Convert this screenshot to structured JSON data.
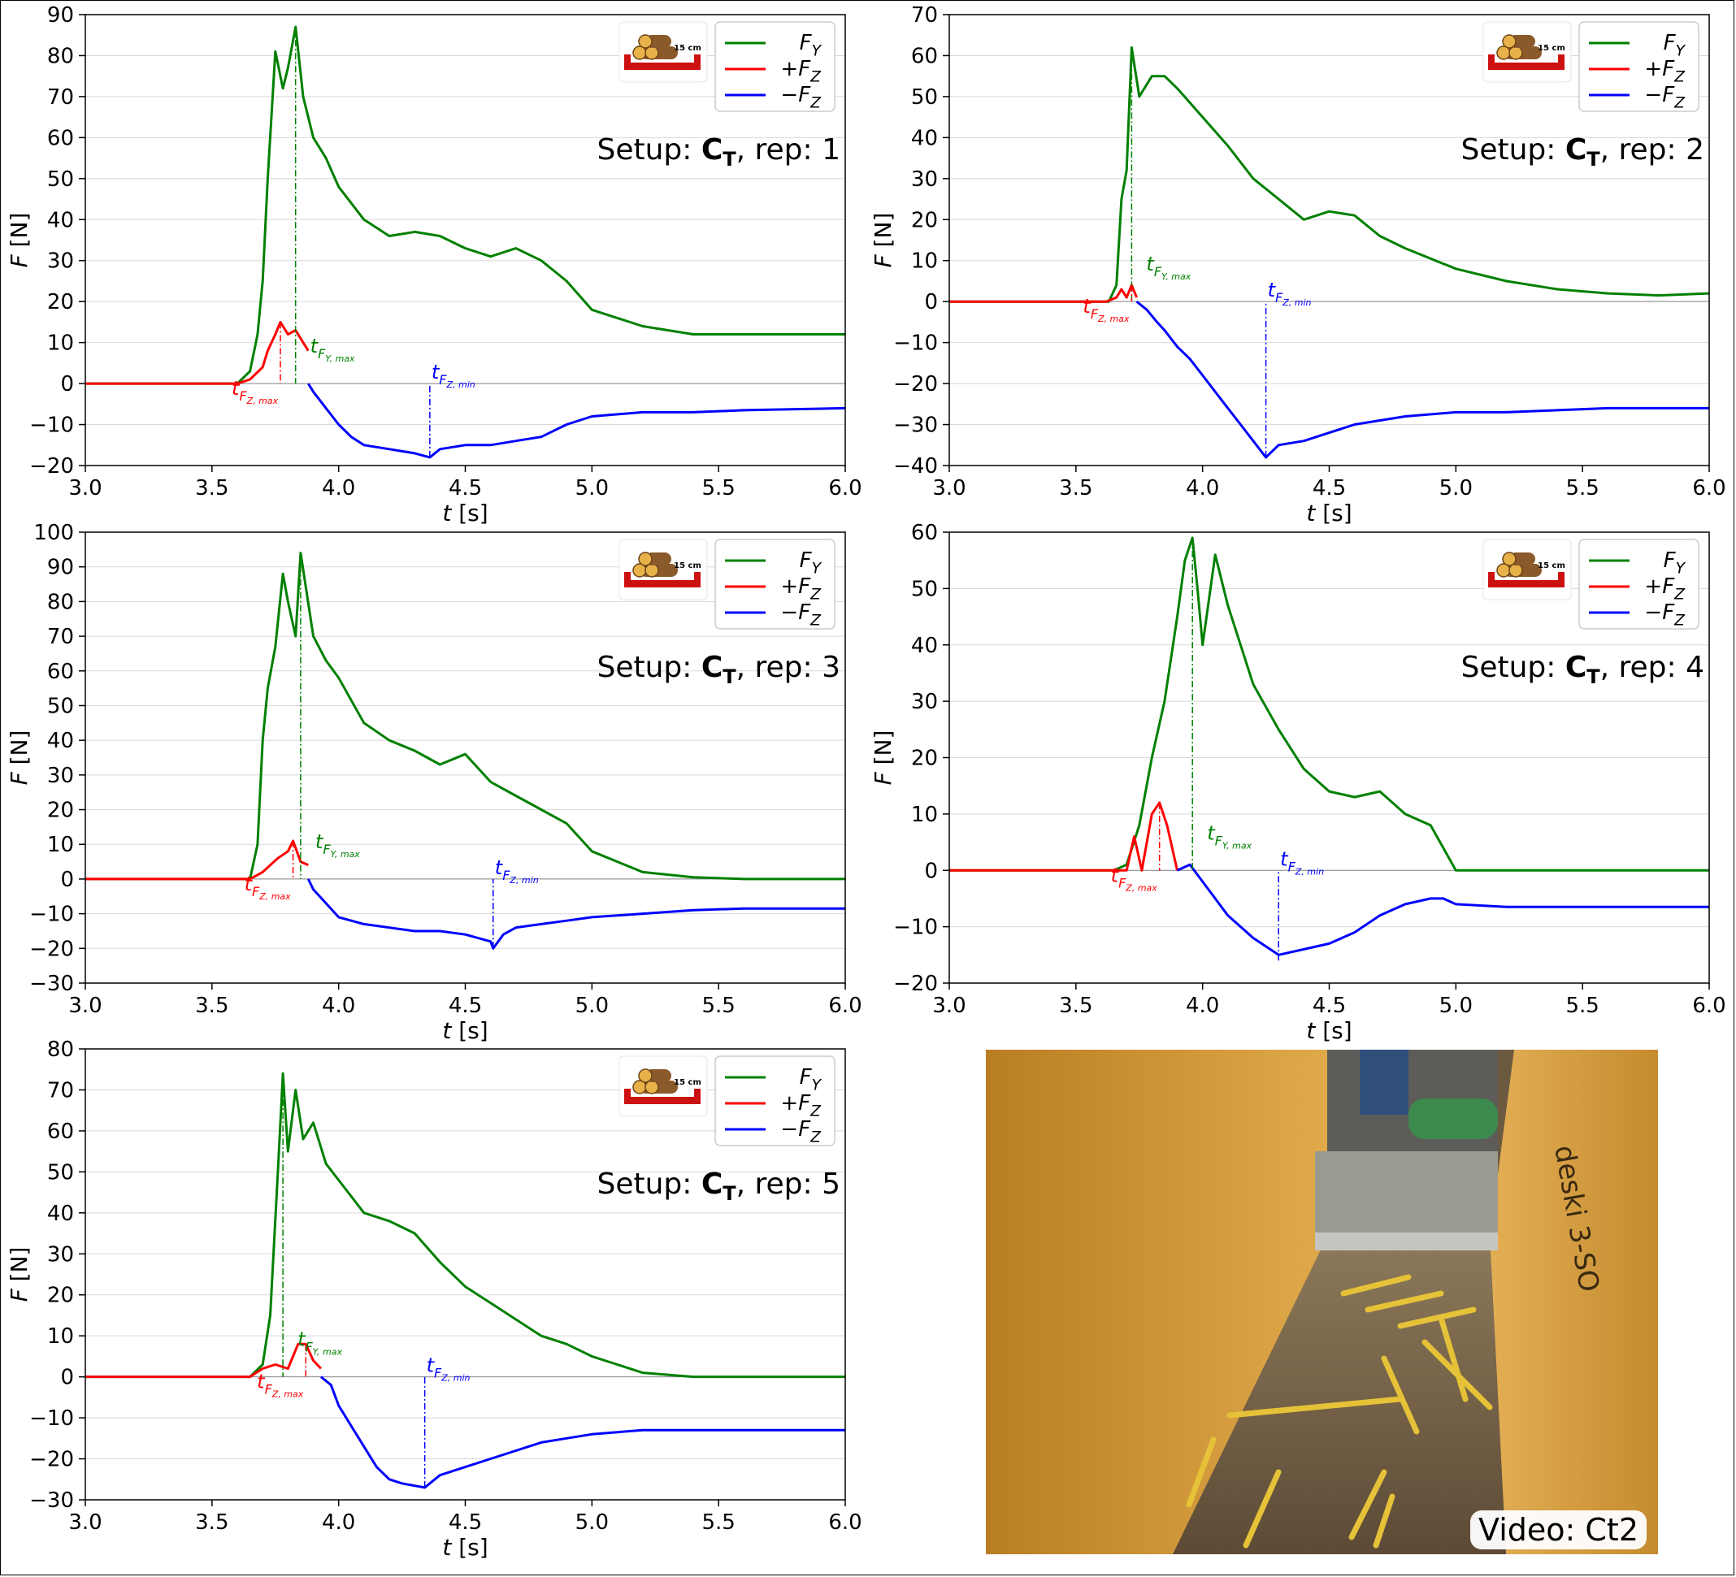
{
  "figure": {
    "video_caption": "Video: Ct2",
    "setup_prefix": "Setup: ",
    "setup_symbol": "C",
    "setup_sub": "T",
    "rep_prefix": ", rep: ",
    "icon_label": "15 cm"
  },
  "legend": {
    "fy": "F_Y",
    "fz_pos": "+F_Z",
    "fz_neg": "−F_Z"
  },
  "axis": {
    "xlabel": "t [s]",
    "ylabel": "F [N]"
  },
  "colors": {
    "fy": "#008000",
    "fz_pos": "#ff0000",
    "fz_neg": "#0000ff",
    "icon": "#cc1111",
    "wood": "#8a5a2b"
  },
  "chart_data": [
    {
      "type": "line",
      "rep": "1",
      "xlim": [
        3.0,
        6.0
      ],
      "ylim": [
        -20,
        90
      ],
      "xticks": [
        3.0,
        3.5,
        4.0,
        4.5,
        5.0,
        5.5,
        6.0
      ],
      "yticks": [
        -20,
        -10,
        0,
        10,
        20,
        30,
        40,
        50,
        60,
        70,
        80,
        90
      ],
      "grid": true,
      "legend_position": "top-right",
      "markers": {
        "t_fy_max": 3.83,
        "fy_max": 87,
        "t_fz_max": 3.77,
        "fz_max": 15,
        "t_fz_min": 4.36,
        "fz_min": -18
      },
      "series": [
        {
          "name": "F_Y",
          "x": [
            3.0,
            3.6,
            3.65,
            3.68,
            3.7,
            3.72,
            3.75,
            3.78,
            3.8,
            3.83,
            3.86,
            3.9,
            3.95,
            4.0,
            4.1,
            4.2,
            4.3,
            4.4,
            4.5,
            4.6,
            4.7,
            4.8,
            4.9,
            5.0,
            5.2,
            5.4,
            5.6,
            6.0
          ],
          "values": [
            0,
            0,
            3,
            12,
            25,
            50,
            81,
            72,
            77,
            87,
            70,
            60,
            55,
            48,
            40,
            36,
            37,
            36,
            33,
            31,
            33,
            30,
            25,
            18,
            14,
            12,
            12,
            12
          ]
        },
        {
          "name": "+F_Z",
          "x": [
            3.0,
            3.6,
            3.65,
            3.7,
            3.72,
            3.75,
            3.77,
            3.8,
            3.83,
            3.86,
            3.88
          ],
          "values": [
            0,
            0,
            1,
            4,
            8,
            12,
            15,
            12,
            13,
            10,
            8
          ]
        },
        {
          "name": "−F_Z",
          "x": [
            3.88,
            3.9,
            3.95,
            4.0,
            4.05,
            4.1,
            4.2,
            4.3,
            4.36,
            4.4,
            4.5,
            4.6,
            4.7,
            4.8,
            4.9,
            5.0,
            5.2,
            5.4,
            5.6,
            6.0
          ],
          "values": [
            0,
            -2,
            -6,
            -10,
            -13,
            -15,
            -16,
            -17,
            -18,
            -16,
            -15,
            -15,
            -14,
            -13,
            -10,
            -8,
            -7,
            -7,
            -6.5,
            -6
          ]
        }
      ]
    },
    {
      "type": "line",
      "rep": "2",
      "xlim": [
        3.0,
        6.0
      ],
      "ylim": [
        -40,
        70
      ],
      "xticks": [
        3.0,
        3.5,
        4.0,
        4.5,
        5.0,
        5.5,
        6.0
      ],
      "yticks": [
        -40,
        -30,
        -20,
        -10,
        0,
        10,
        20,
        30,
        40,
        50,
        60,
        70
      ],
      "grid": true,
      "legend_position": "top-right",
      "markers": {
        "t_fy_max": 3.72,
        "fy_max": 62,
        "t_fz_max": 3.72,
        "fz_max": 4,
        "t_fz_min": 4.25,
        "fz_min": -38
      },
      "series": [
        {
          "name": "F_Y",
          "x": [
            3.0,
            3.63,
            3.66,
            3.68,
            3.7,
            3.72,
            3.75,
            3.8,
            3.85,
            3.9,
            4.0,
            4.1,
            4.2,
            4.3,
            4.4,
            4.5,
            4.6,
            4.7,
            4.8,
            5.0,
            5.2,
            5.4,
            5.6,
            5.8,
            6.0
          ],
          "values": [
            0,
            0,
            4,
            25,
            32,
            62,
            50,
            55,
            55,
            52,
            45,
            38,
            30,
            25,
            20,
            22,
            21,
            16,
            13,
            8,
            5,
            3,
            2,
            1.5,
            2
          ]
        },
        {
          "name": "+F_Z",
          "x": [
            3.0,
            3.62,
            3.66,
            3.68,
            3.7,
            3.72,
            3.74
          ],
          "values": [
            0,
            0,
            1,
            3,
            1,
            4,
            1
          ]
        },
        {
          "name": "−F_Z",
          "x": [
            3.74,
            3.78,
            3.82,
            3.85,
            3.9,
            3.95,
            4.0,
            4.05,
            4.1,
            4.15,
            4.2,
            4.25,
            4.3,
            4.4,
            4.5,
            4.6,
            4.7,
            4.8,
            5.0,
            5.2,
            5.4,
            5.6,
            6.0
          ],
          "values": [
            0,
            -2,
            -5,
            -7,
            -11,
            -14,
            -18,
            -22,
            -26,
            -30,
            -34,
            -38,
            -35,
            -34,
            -32,
            -30,
            -29,
            -28,
            -27,
            -27,
            -26.5,
            -26,
            -26
          ]
        }
      ]
    },
    {
      "type": "line",
      "rep": "3",
      "xlim": [
        3.0,
        6.0
      ],
      "ylim": [
        -30,
        100
      ],
      "xticks": [
        3.0,
        3.5,
        4.0,
        4.5,
        5.0,
        5.5,
        6.0
      ],
      "yticks": [
        -30,
        -20,
        -10,
        0,
        10,
        20,
        30,
        40,
        50,
        60,
        70,
        80,
        90,
        100
      ],
      "grid": true,
      "legend_position": "top-right",
      "markers": {
        "t_fy_max": 3.85,
        "fy_max": 94,
        "t_fz_max": 3.82,
        "fz_max": 11,
        "t_fz_min": 4.61,
        "fz_min": -20
      },
      "series": [
        {
          "name": "F_Y",
          "x": [
            3.0,
            3.65,
            3.68,
            3.7,
            3.72,
            3.75,
            3.78,
            3.8,
            3.83,
            3.85,
            3.9,
            3.95,
            4.0,
            4.1,
            4.2,
            4.3,
            4.4,
            4.5,
            4.6,
            4.7,
            4.8,
            4.9,
            5.0,
            5.2,
            5.4,
            5.6,
            6.0
          ],
          "values": [
            0,
            0,
            10,
            40,
            55,
            67,
            88,
            80,
            70,
            94,
            70,
            63,
            58,
            45,
            40,
            37,
            33,
            36,
            28,
            24,
            20,
            16,
            8,
            2,
            0.5,
            0,
            0
          ]
        },
        {
          "name": "+F_Z",
          "x": [
            3.0,
            3.65,
            3.7,
            3.73,
            3.76,
            3.8,
            3.82,
            3.85,
            3.88
          ],
          "values": [
            0,
            0,
            2,
            4,
            6,
            8,
            11,
            5,
            4
          ]
        },
        {
          "name": "−F_Z",
          "x": [
            3.88,
            3.9,
            3.95,
            4.0,
            4.05,
            4.1,
            4.2,
            4.3,
            4.4,
            4.5,
            4.6,
            4.61,
            4.65,
            4.7,
            4.8,
            4.9,
            5.0,
            5.2,
            5.4,
            5.6,
            6.0
          ],
          "values": [
            0,
            -3,
            -7,
            -11,
            -12,
            -13,
            -14,
            -15,
            -15,
            -16,
            -18,
            -20,
            -16,
            -14,
            -13,
            -12,
            -11,
            -10,
            -9,
            -8.5,
            -8.5
          ]
        }
      ]
    },
    {
      "type": "line",
      "rep": "4",
      "xlim": [
        3.0,
        6.0
      ],
      "ylim": [
        -20,
        60
      ],
      "xticks": [
        3.0,
        3.5,
        4.0,
        4.5,
        5.0,
        5.5,
        6.0
      ],
      "yticks": [
        -20,
        -10,
        0,
        10,
        20,
        30,
        40,
        50,
        60
      ],
      "grid": true,
      "legend_position": "top-right",
      "markers": {
        "t_fy_max": 3.96,
        "fy_max": 59,
        "t_fz_max": 3.83,
        "fz_max": 12,
        "t_fz_min": 4.3,
        "fz_min": -16
      },
      "series": [
        {
          "name": "F_Y",
          "x": [
            3.0,
            3.65,
            3.7,
            3.75,
            3.8,
            3.85,
            3.9,
            3.93,
            3.96,
            3.98,
            4.0,
            4.05,
            4.1,
            4.2,
            4.3,
            4.4,
            4.5,
            4.6,
            4.7,
            4.8,
            4.9,
            4.95,
            5.0,
            5.2,
            5.4,
            6.0
          ],
          "values": [
            0,
            0,
            1,
            8,
            20,
            30,
            45,
            55,
            59,
            50,
            40,
            56,
            47,
            33,
            25,
            18,
            14,
            13,
            14,
            10,
            8,
            4,
            0,
            0,
            0,
            0
          ]
        },
        {
          "name": "+F_Z",
          "x": [
            3.0,
            3.7,
            3.73,
            3.76,
            3.8,
            3.83,
            3.86,
            3.9
          ],
          "values": [
            0,
            0,
            6,
            0,
            10,
            12,
            8,
            0
          ]
        },
        {
          "name": "−F_Z",
          "x": [
            3.9,
            3.95,
            4.0,
            4.05,
            4.1,
            4.15,
            4.2,
            4.3,
            4.4,
            4.5,
            4.6,
            4.7,
            4.8,
            4.9,
            4.95,
            5.0,
            5.2,
            5.4,
            5.6,
            6.0
          ],
          "values": [
            0,
            1,
            -2,
            -5,
            -8,
            -10,
            -12,
            -15,
            -14,
            -13,
            -11,
            -8,
            -6,
            -5,
            -5,
            -6,
            -6.5,
            -6.5,
            -6.5,
            -6.5
          ]
        }
      ]
    },
    {
      "type": "line",
      "rep": "5",
      "xlim": [
        3.0,
        6.0
      ],
      "ylim": [
        -30,
        80
      ],
      "xticks": [
        3.0,
        3.5,
        4.0,
        4.5,
        5.0,
        5.5,
        6.0
      ],
      "yticks": [
        -30,
        -20,
        -10,
        0,
        10,
        20,
        30,
        40,
        50,
        60,
        70,
        80
      ],
      "grid": true,
      "legend_position": "top-right",
      "markers": {
        "t_fy_max": 3.78,
        "fy_max": 74,
        "t_fz_max": 3.87,
        "fz_max": 8,
        "t_fz_min": 4.34,
        "fz_min": -27
      },
      "series": [
        {
          "name": "F_Y",
          "x": [
            3.0,
            3.65,
            3.7,
            3.73,
            3.76,
            3.78,
            3.8,
            3.83,
            3.86,
            3.9,
            3.95,
            4.0,
            4.1,
            4.2,
            4.3,
            4.4,
            4.5,
            4.6,
            4.7,
            4.8,
            4.9,
            5.0,
            5.1,
            5.2,
            5.4,
            6.0
          ],
          "values": [
            0,
            0,
            3,
            15,
            50,
            74,
            55,
            70,
            58,
            62,
            52,
            48,
            40,
            38,
            35,
            28,
            22,
            18,
            14,
            10,
            8,
            5,
            3,
            1,
            0,
            0
          ]
        },
        {
          "name": "+F_Z",
          "x": [
            3.0,
            3.65,
            3.7,
            3.75,
            3.8,
            3.84,
            3.87,
            3.9,
            3.93
          ],
          "values": [
            0,
            0,
            2,
            3,
            2,
            8,
            8,
            4,
            2
          ]
        },
        {
          "name": "−F_Z",
          "x": [
            3.93,
            3.97,
            4.0,
            4.05,
            4.1,
            4.15,
            4.2,
            4.25,
            4.34,
            4.4,
            4.5,
            4.6,
            4.7,
            4.8,
            4.9,
            5.0,
            5.2,
            5.4,
            5.6,
            6.0
          ],
          "values": [
            0,
            -2,
            -7,
            -12,
            -17,
            -22,
            -25,
            -26,
            -27,
            -24,
            -22,
            -20,
            -18,
            -16,
            -15,
            -14,
            -13,
            -13,
            -13,
            -13
          ]
        }
      ]
    }
  ]
}
